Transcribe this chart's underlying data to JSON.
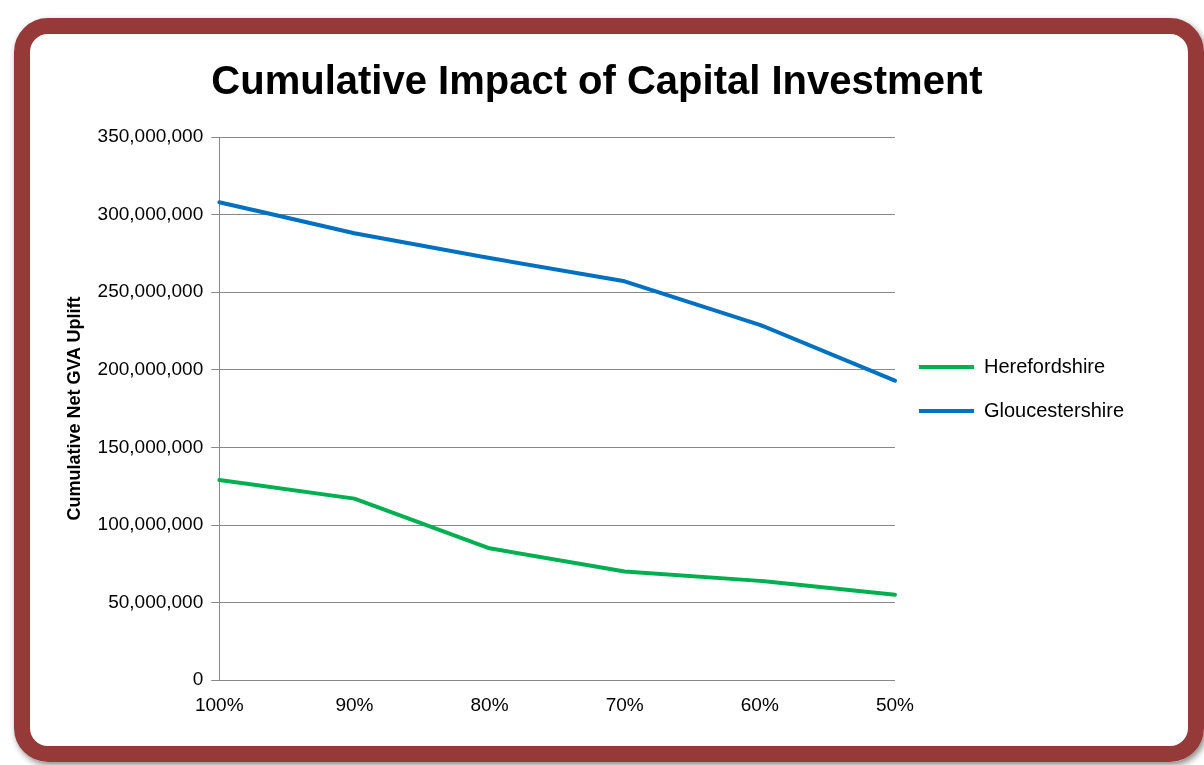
{
  "chart_data": {
    "type": "line",
    "title": "Cumulative Impact of Capital Investment",
    "ylabel": "Cumulative Net GVA Uplift",
    "categories": [
      "100%",
      "90%",
      "80%",
      "70%",
      "60%",
      "50%"
    ],
    "series": [
      {
        "name": "Herefordshire",
        "color": "#00b050",
        "values": [
          129000000,
          117000000,
          85000000,
          70000000,
          64000000,
          55000000
        ]
      },
      {
        "name": "Gloucestershire",
        "color": "#0070c0",
        "values": [
          308000000,
          288000000,
          272000000,
          257000000,
          229000000,
          193000000
        ]
      }
    ],
    "ylim": [
      0,
      350000000
    ],
    "yticks": [
      0,
      {
        "value": 50000000,
        "label": "50,000,000"
      },
      {
        "value": 100000000,
        "label": "100,000,000"
      },
      {
        "value": 150000000,
        "label": "150,000,000"
      },
      {
        "value": 200000000,
        "label": "200,000,000"
      },
      {
        "value": 250000000,
        "label": "250,000,000"
      },
      {
        "value": 300000000,
        "label": "300,000,000"
      },
      {
        "value": 350000000,
        "label": "350,000,000"
      }
    ],
    "grid": "y",
    "legend": "right",
    "marker": "none",
    "line_style": "solid"
  }
}
